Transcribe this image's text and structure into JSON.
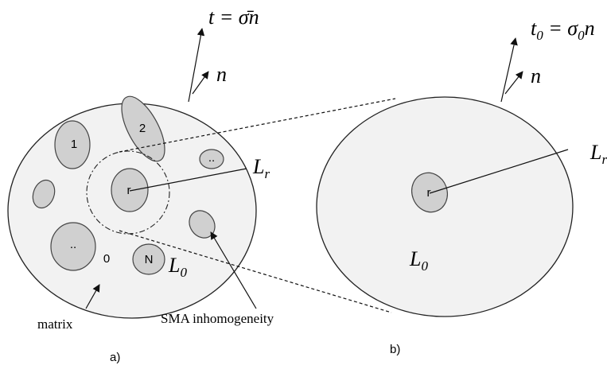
{
  "left": {
    "traction": {
      "lhs": "t = ",
      "sigma": "σ̄",
      "rhs": "n"
    },
    "normal": "n",
    "labels": [
      "1",
      "2",
      "..",
      "r",
      "..",
      "0",
      "N"
    ],
    "moduli_r": {
      "base": "L",
      "sub": "r"
    },
    "moduli_0": {
      "base": "L",
      "sub": "0"
    },
    "matrix": "matrix",
    "sma": "SMA inhomogeneity",
    "caption": "a)"
  },
  "right": {
    "traction": {
      "base": "t",
      "sub": "0",
      "eq": " = σ",
      "eq_sub": "0",
      "tail": "n"
    },
    "normal": "n",
    "label": "r",
    "moduli_r": {
      "base": "L",
      "sub": "r"
    },
    "moduli_0": {
      "base": "L",
      "sub": "0"
    },
    "caption": "b)"
  }
}
